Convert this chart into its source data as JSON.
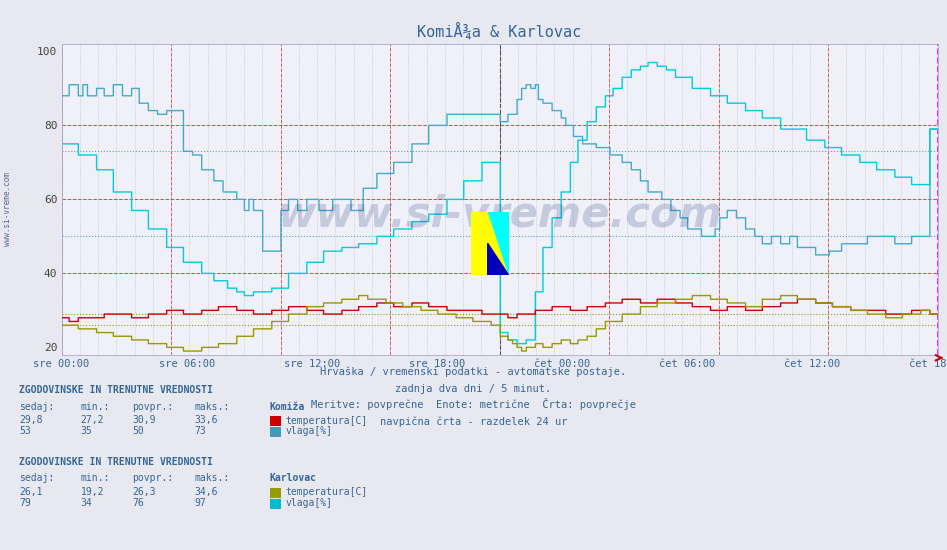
{
  "title": "KomiÅ¾a & Karlovac",
  "background_color": "#e8e8f0",
  "plot_bg_color": "#f0f0f8",
  "xlabel_ticks": [
    "sre 00:00",
    "sre 06:00",
    "sre 12:00",
    "sre 18:00",
    "čet 00:00",
    "čet 06:00",
    "čet 12:00",
    "čet 18:00"
  ],
  "ylim": [
    18,
    102
  ],
  "yticks": [
    20,
    40,
    60,
    80,
    100
  ],
  "hlines_red": [
    80,
    60,
    40
  ],
  "hline_cyan_1": 73,
  "hline_cyan_2": 50,
  "hline_olive_1": 29,
  "hline_olive_2": 26,
  "watermark": "www.si-vreme.com",
  "footnote_lines": [
    "Hrvaška / vremenski podatki - avtomatske postaje.",
    "zadnja dva dni / 5 minut.",
    "Meritve: povprečne  Enote: metrične  Črta: povprečje",
    "navpična črta - razdelek 24 ur"
  ],
  "legend_title_1": "ZGODOVINSKE IN TRENUTNE VREDNOSTI",
  "legend_cols": [
    "sedaj:",
    "min.:",
    "povpr.:",
    "maks.:"
  ],
  "legend_vals_1a": [
    "29,8",
    "27,2",
    "30,9",
    "33,6"
  ],
  "legend_vals_1b": [
    "53",
    "35",
    "50",
    "73"
  ],
  "legend_station_1": "Komiža",
  "legend_series_1": [
    "temperatura[C]",
    "vlaga[%]"
  ],
  "legend_colors_1": [
    "#cc0000",
    "#4499bb"
  ],
  "legend_title_2": "ZGODOVINSKE IN TRENUTNE VREDNOSTI",
  "legend_vals_2a": [
    "26,1",
    "19,2",
    "26,3",
    "34,6"
  ],
  "legend_vals_2b": [
    "79",
    "34",
    "76",
    "97"
  ],
  "legend_station_2": "Karlovac",
  "legend_series_2": [
    "temperatura[C]",
    "vlaga[%]"
  ],
  "legend_colors_2": [
    "#999900",
    "#00bbcc"
  ],
  "color_komiza_temp": "#cc0000",
  "color_komiza_vlaga": "#44aacc",
  "color_karlovac_temp": "#999900",
  "color_karlovac_vlaga": "#00ccdd",
  "vline_color_day": "#888888",
  "vline_color_now": "#ff00ff",
  "arrow_color": "#cc0000",
  "num_points": 576
}
